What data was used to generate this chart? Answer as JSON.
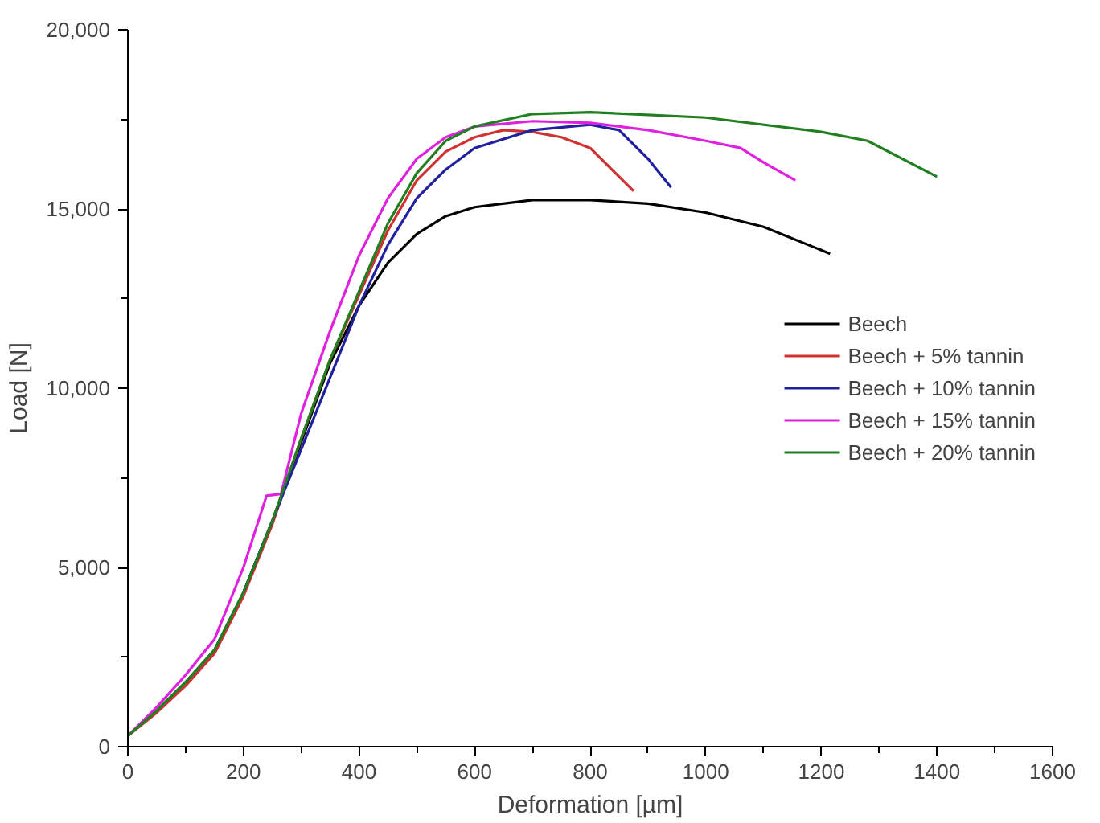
{
  "chart_data": {
    "type": "line",
    "xlabel": "Deformation [µm]",
    "ylabel": "Load [N]",
    "xlim": [
      0,
      1600
    ],
    "ylim": [
      0,
      20000
    ],
    "xticks": [
      0,
      200,
      400,
      600,
      800,
      1000,
      1200,
      1400,
      1600
    ],
    "yticks": [
      0,
      {
        "value": 5000,
        "label": "5,000"
      },
      {
        "value": 10000,
        "label": "10,000"
      },
      {
        "value": 15000,
        "label": "15,000"
      },
      {
        "value": 20000,
        "label": "20,000"
      }
    ],
    "legend": "right",
    "grid": false,
    "marker": "none",
    "line_style": "solid",
    "series": [
      {
        "name": "Beech",
        "color": "#000000",
        "x": [
          0,
          50,
          100,
          150,
          200,
          250,
          300,
          350,
          400,
          450,
          500,
          550,
          600,
          700,
          800,
          900,
          1000,
          1100,
          1200,
          1215
        ],
        "values": [
          300,
          1000,
          1800,
          2700,
          4300,
          6300,
          8500,
          10700,
          12300,
          13500,
          14300,
          14800,
          15050,
          15250,
          15250,
          15150,
          14900,
          14500,
          13850,
          13750
        ]
      },
      {
        "name": "Beech + 5% tannin",
        "color": "#d03030",
        "x": [
          0,
          50,
          100,
          150,
          200,
          250,
          300,
          350,
          400,
          450,
          500,
          550,
          600,
          650,
          700,
          750,
          800,
          875
        ],
        "values": [
          300,
          950,
          1700,
          2600,
          4200,
          6200,
          8600,
          10800,
          12600,
          14400,
          15800,
          16600,
          17000,
          17200,
          17150,
          17000,
          16700,
          15500
        ]
      },
      {
        "name": "Beech + 10% tannin",
        "color": "#2020a0",
        "x": [
          200,
          250,
          300,
          350,
          400,
          450,
          500,
          550,
          600,
          700,
          800,
          850,
          900,
          940
        ],
        "values": [
          4300,
          6300,
          8300,
          10300,
          12300,
          14000,
          15300,
          16100,
          16700,
          17200,
          17350,
          17200,
          16400,
          15600
        ]
      },
      {
        "name": "Beech + 15% tannin",
        "color": "#e020e0",
        "x": [
          0,
          50,
          100,
          150,
          200,
          240,
          265,
          300,
          350,
          400,
          450,
          500,
          550,
          600,
          700,
          800,
          900,
          1000,
          1060,
          1100,
          1155
        ],
        "values": [
          300,
          1100,
          2000,
          3000,
          5000,
          7000,
          7050,
          9300,
          11600,
          13700,
          15300,
          16400,
          17000,
          17300,
          17450,
          17400,
          17200,
          16900,
          16700,
          16300,
          15800
        ]
      },
      {
        "name": "Beech + 20% tannin",
        "color": "#208020",
        "x": [
          0,
          50,
          100,
          150,
          200,
          250,
          300,
          350,
          400,
          450,
          500,
          550,
          600,
          700,
          800,
          1000,
          1200,
          1280,
          1400
        ],
        "values": [
          300,
          1000,
          1800,
          2700,
          4300,
          6300,
          8600,
          10800,
          12700,
          14600,
          16000,
          16900,
          17300,
          17650,
          17700,
          17550,
          17150,
          16900,
          15900
        ]
      }
    ]
  }
}
